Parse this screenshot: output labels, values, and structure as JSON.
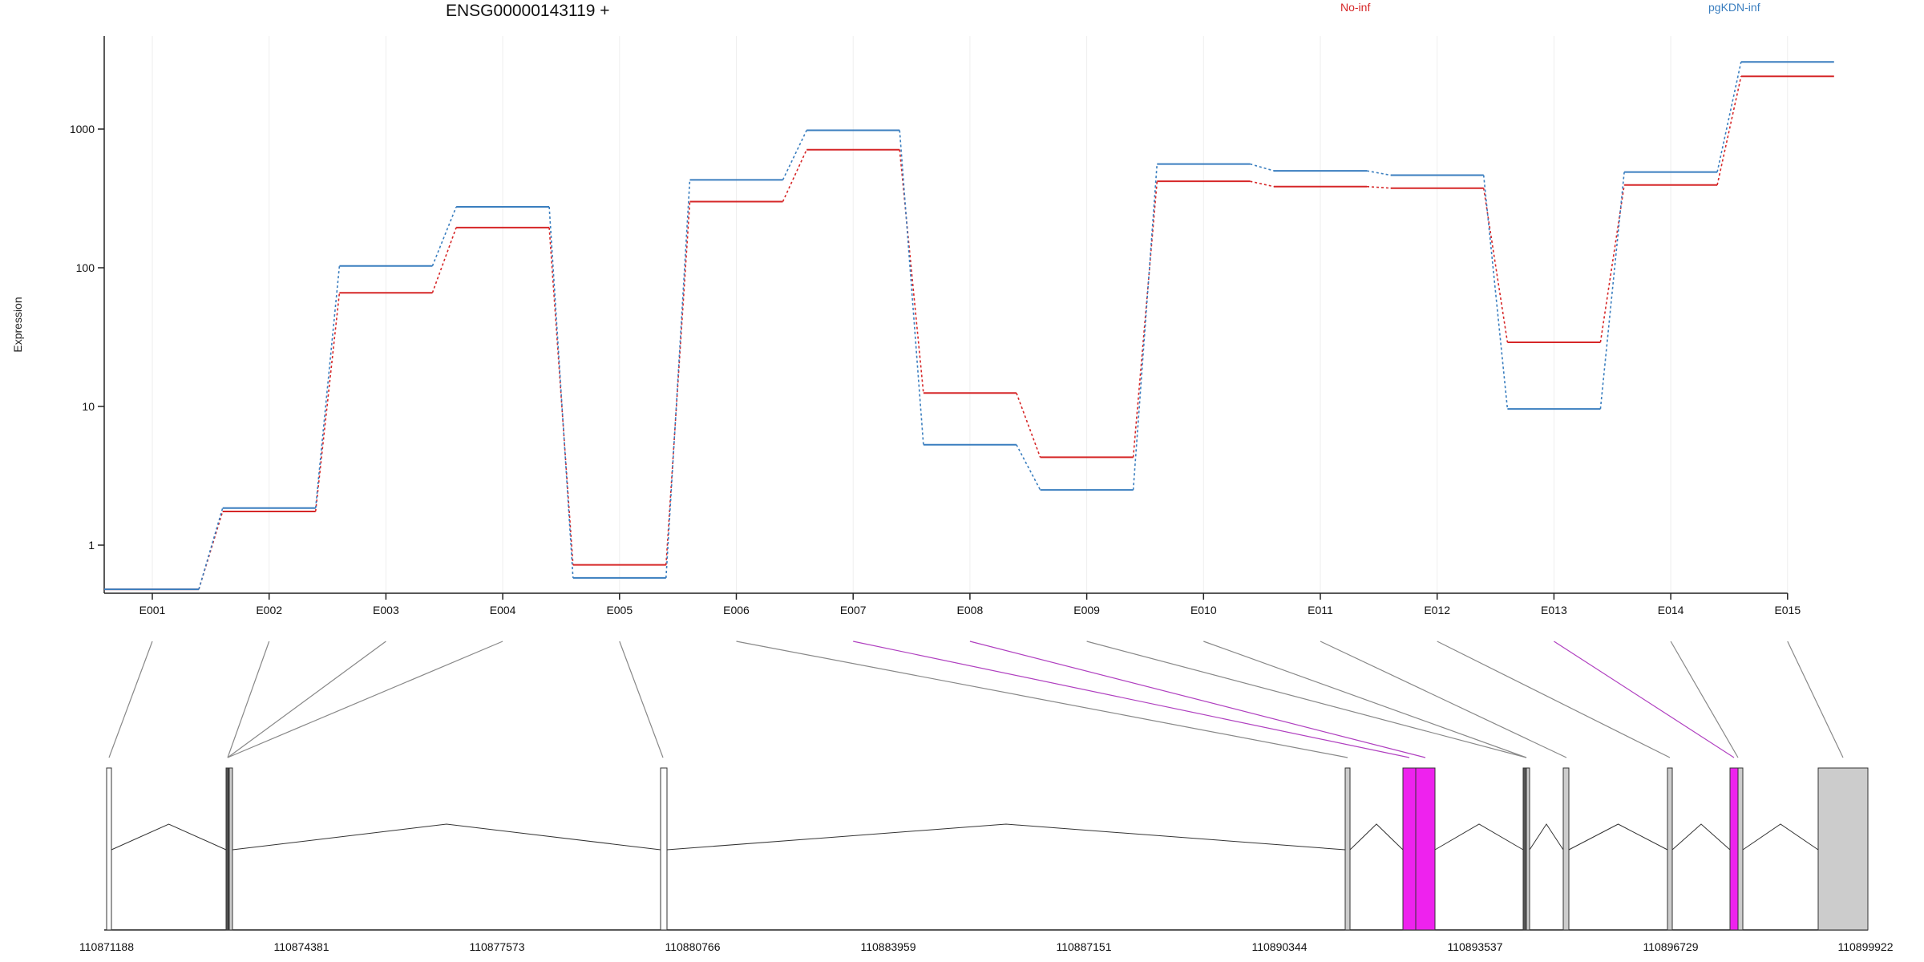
{
  "chart_data": {
    "type": "line",
    "title": "ENSG00000143119 +",
    "ylabel": "Expression",
    "yscale": "log",
    "ylim": [
      0.43,
      4000
    ],
    "yticks": [
      1,
      10,
      100,
      1000
    ],
    "grid": "vertical",
    "legend_placement": "top",
    "categories": [
      "E001",
      "E002",
      "E003",
      "E004",
      "E005",
      "E006",
      "E007",
      "E008",
      "E009",
      "E010",
      "E011",
      "E012",
      "E013",
      "E014",
      "E015"
    ],
    "series": [
      {
        "name": "No-inf",
        "color": "#d62728",
        "values": [
          0.48,
          1.75,
          66,
          195,
          0.72,
          300,
          710,
          12.5,
          4.3,
          420,
          385,
          375,
          29,
          395,
          2400
        ]
      },
      {
        "name": "pgKDN-inf",
        "color": "#3a7ebf",
        "values": [
          0.48,
          1.85,
          103,
          275,
          0.58,
          430,
          980,
          5.3,
          2.5,
          560,
          500,
          465,
          9.6,
          490,
          3050
        ]
      }
    ],
    "gene_model": {
      "coords": [
        "110871188",
        "110874381",
        "110877573",
        "110880766",
        "110883959",
        "110887151",
        "110890344",
        "110893537",
        "110896729",
        "110899922"
      ],
      "highlight_color": "#ee22ee",
      "normal_color": "#cccccc"
    }
  }
}
